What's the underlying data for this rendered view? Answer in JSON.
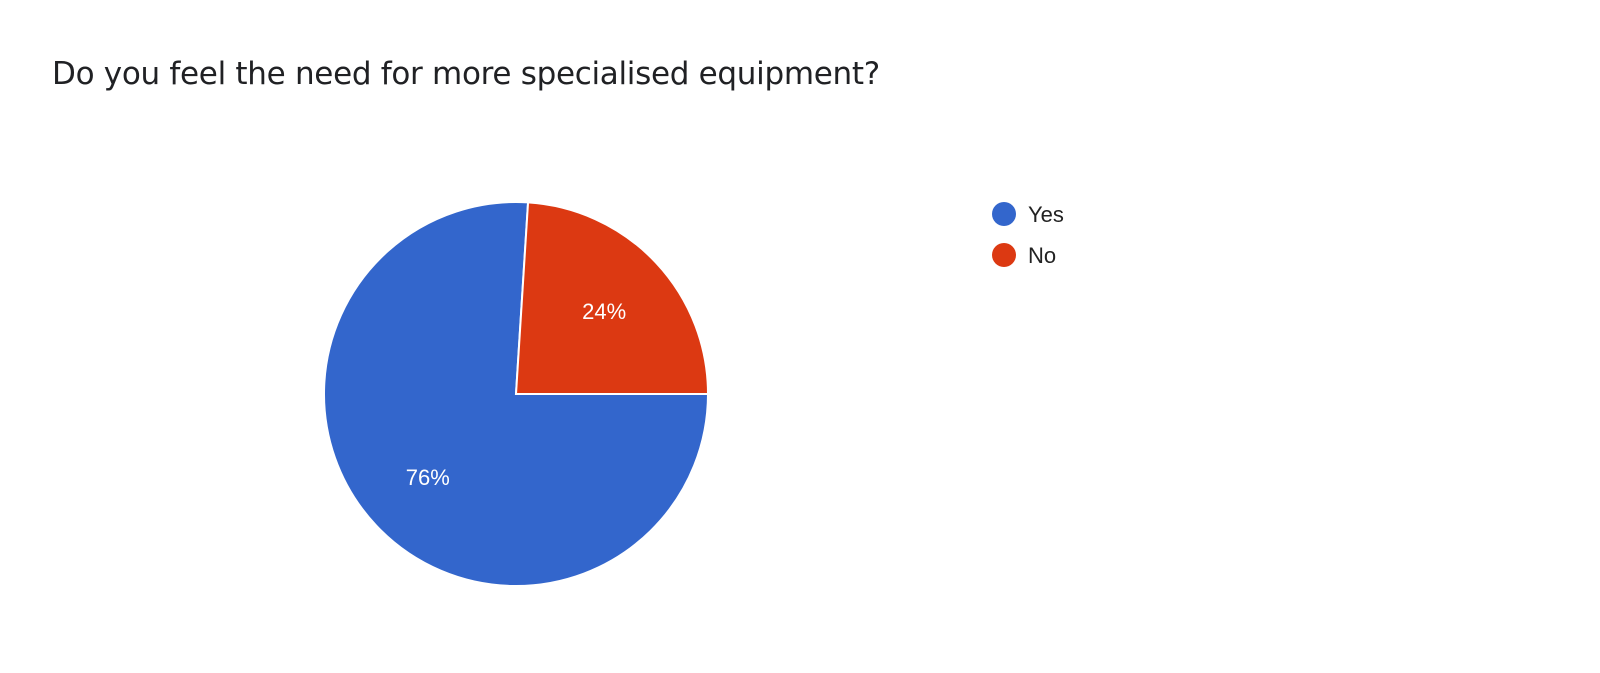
{
  "chart_data": {
    "type": "pie",
    "title": "Do you feel the need for more specialised equipment?",
    "categories": [
      "Yes",
      "No"
    ],
    "values": [
      76,
      24
    ],
    "labels": [
      "76%",
      "24%"
    ],
    "colors": [
      "#3366cc",
      "#dc3912"
    ],
    "legend_position": "right"
  }
}
